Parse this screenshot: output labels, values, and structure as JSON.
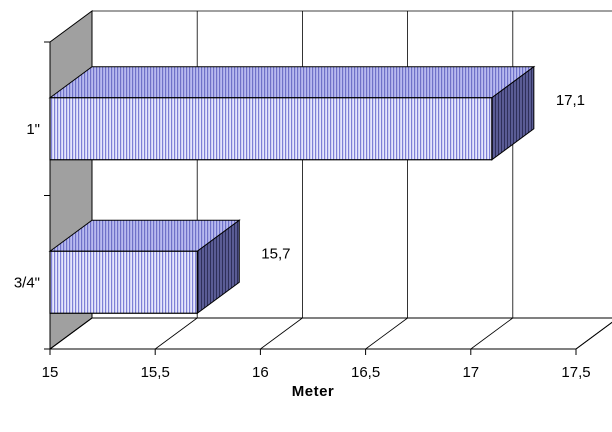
{
  "chart_data": {
    "type": "bar",
    "orientation": "horizontal",
    "three_d": true,
    "categories": [
      "1\"",
      "3/4\""
    ],
    "values": [
      17.1,
      15.7
    ],
    "data_labels": [
      "17,1",
      "15,7"
    ],
    "xlim": [
      15,
      17.5
    ],
    "ticks": [
      15,
      15.5,
      16,
      16.5,
      17,
      17.5
    ],
    "tick_labels": [
      "15",
      "15,5",
      "16",
      "16,5",
      "17",
      "17,5"
    ],
    "xlabel": "Meter",
    "ylabel": "",
    "title": "",
    "grid": true,
    "legend": "none",
    "colors": {
      "bar_front": "#c6c8f6",
      "bar_top": "#a6a8e8",
      "bar_side": "#4a4c82",
      "wall": "#a0a0a0",
      "grid": "#000000"
    }
  }
}
